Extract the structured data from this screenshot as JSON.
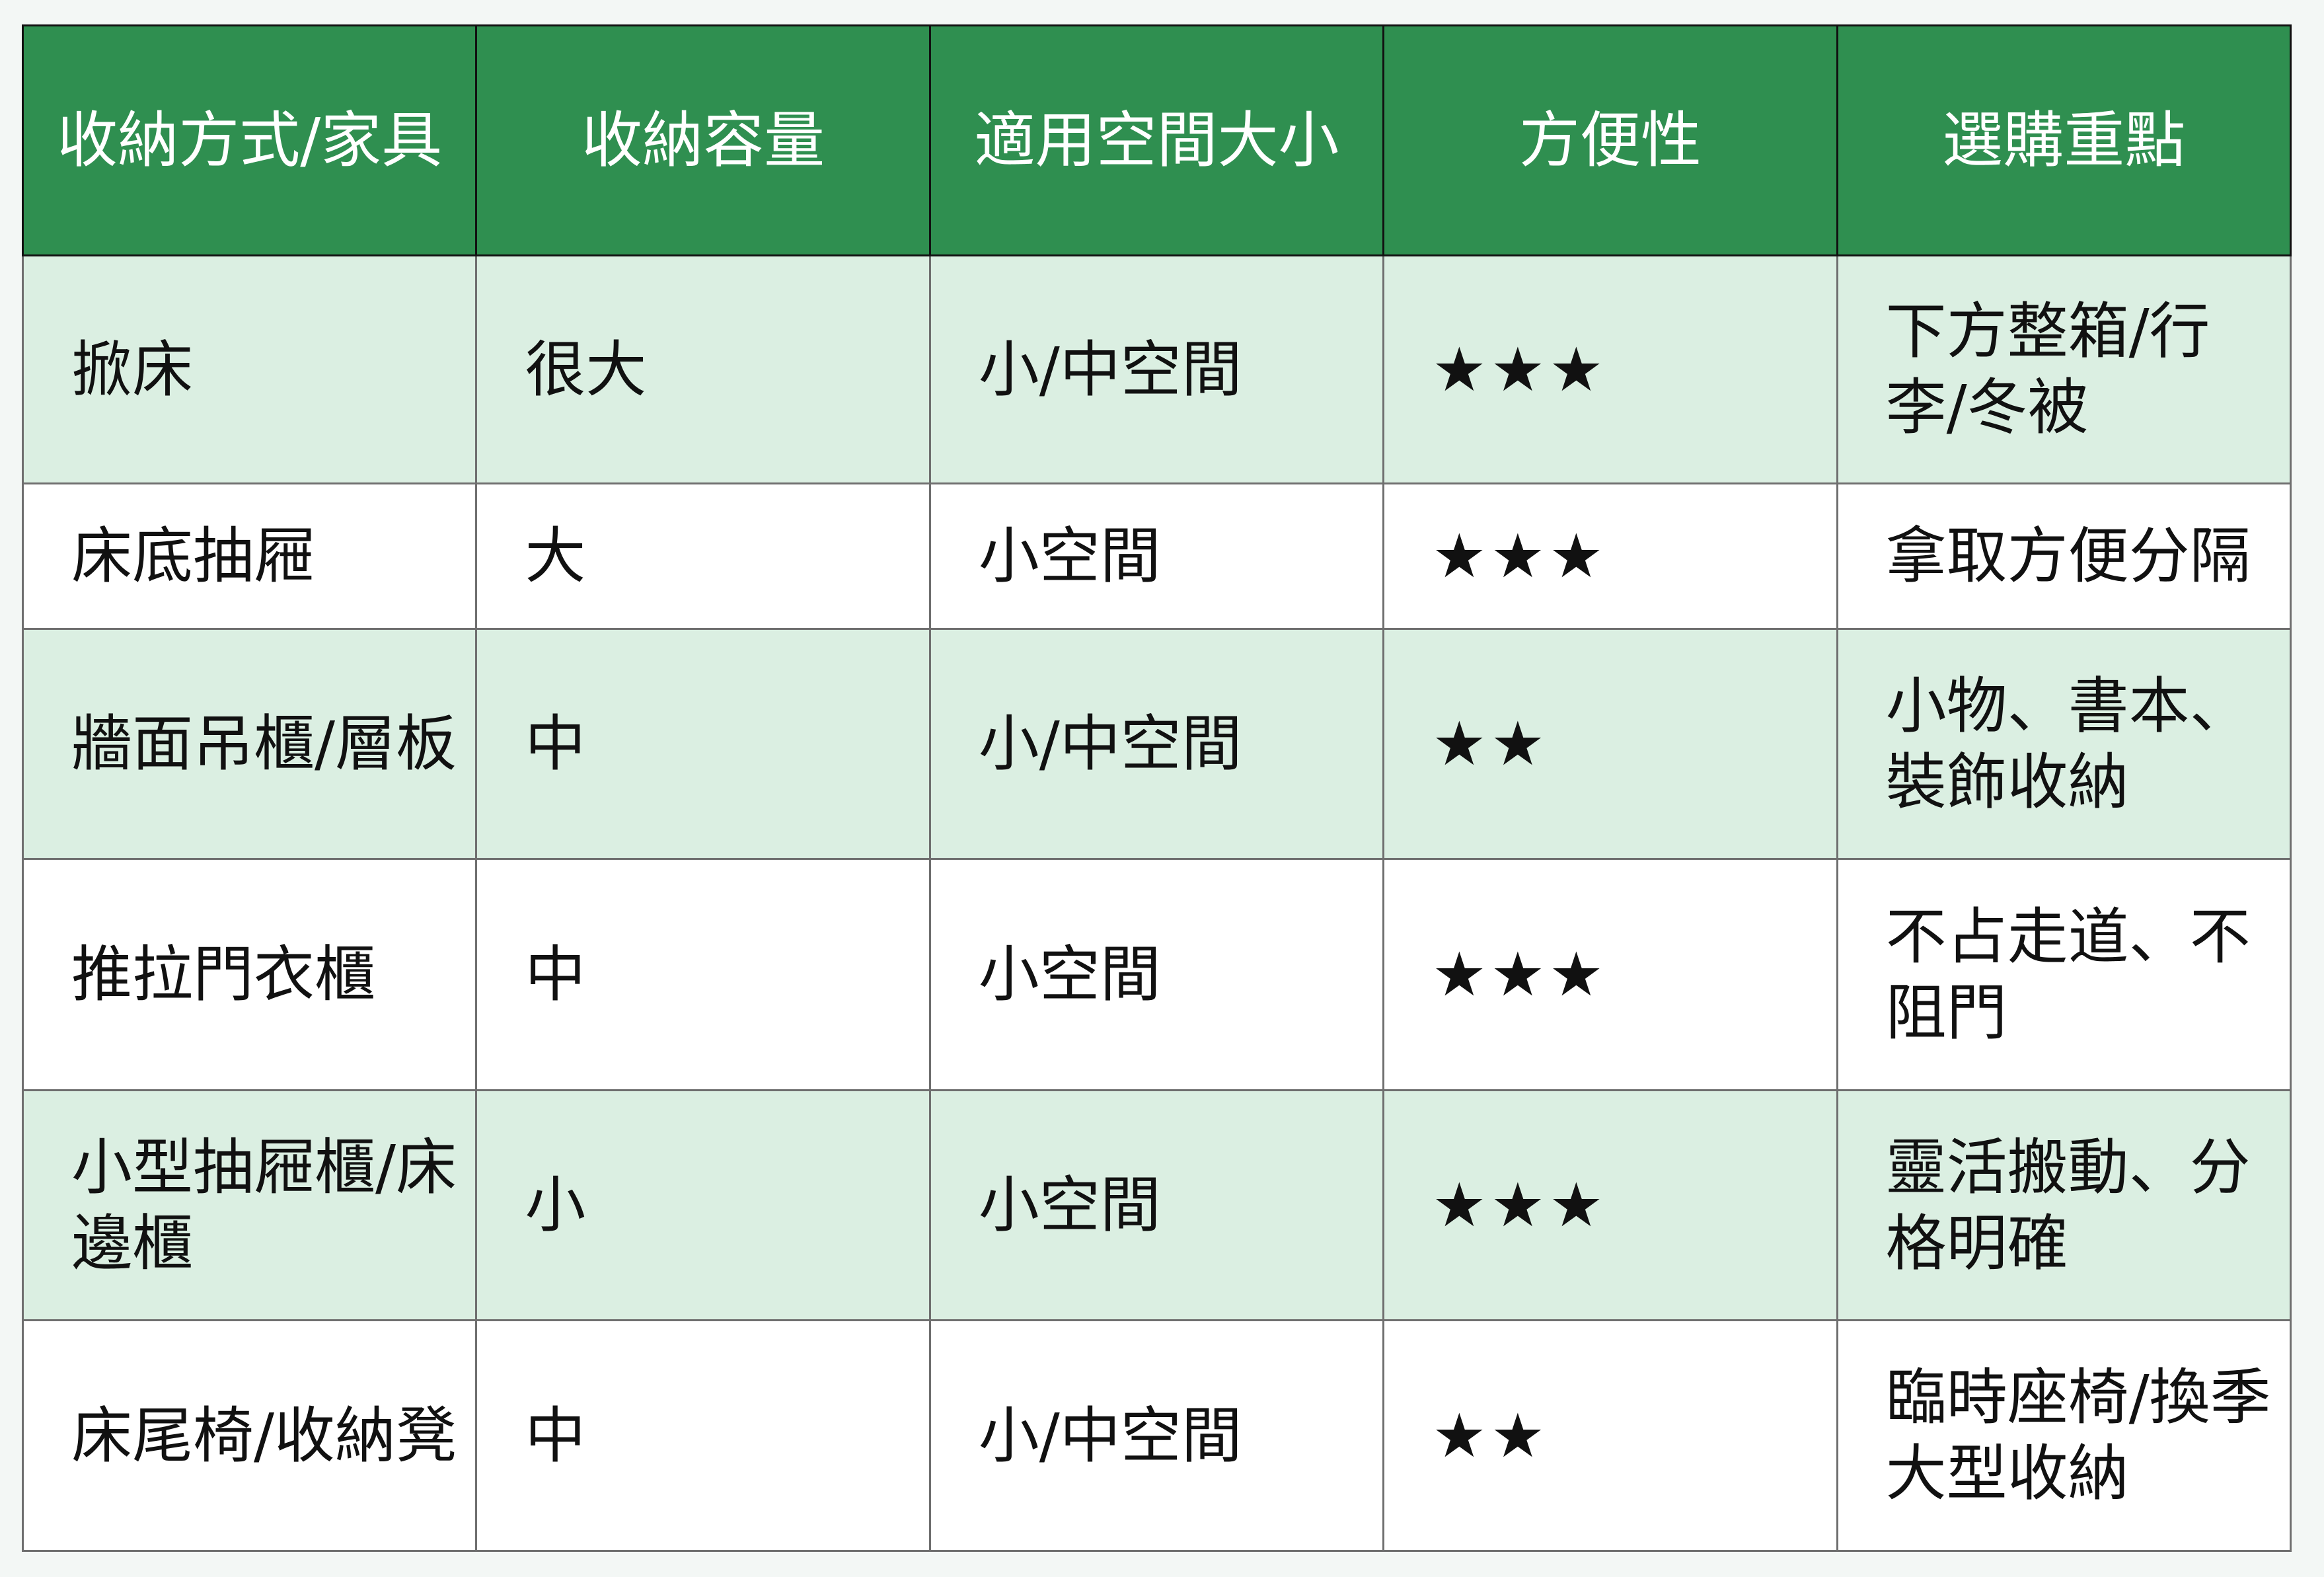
{
  "table": {
    "headers": [
      "收納方式/家具",
      "收納容量",
      "適用空間大小",
      "方便性",
      "選購重點"
    ],
    "rows": [
      {
        "method": "掀床",
        "capacity": "很大",
        "space": "小/中空間",
        "convenience_stars": "★★★",
        "convenience": 3,
        "tips": "下方整箱/行李/冬被"
      },
      {
        "method": "床底抽屜",
        "capacity": "大",
        "space": "小空間",
        "convenience_stars": "★★★",
        "convenience": 3,
        "tips": "拿取方便分隔"
      },
      {
        "method": "牆面吊櫃/層板",
        "capacity": "中",
        "space": "小/中空間",
        "convenience_stars": "★★",
        "convenience": 2,
        "tips": "小物、書本、裝飾收納"
      },
      {
        "method": "推拉門衣櫃",
        "capacity": "中",
        "space": "小空間",
        "convenience_stars": "★★★",
        "convenience": 3,
        "tips": "不占走道、不阻門"
      },
      {
        "method": "小型抽屜櫃/床邊櫃",
        "capacity": "小",
        "space": "小空間",
        "convenience_stars": "★★★",
        "convenience": 3,
        "tips": "靈活搬動、分格明確"
      },
      {
        "method": "床尾椅/收納凳",
        "capacity": "中",
        "space": "小/中空間",
        "convenience_stars": "★★",
        "convenience": 2,
        "tips": "臨時座椅/換季大型收納"
      }
    ]
  },
  "colors": {
    "header": "#2f8f50",
    "alt_row": "#dbefe2",
    "row": "#ffffff",
    "background": "#f3f7f5"
  }
}
